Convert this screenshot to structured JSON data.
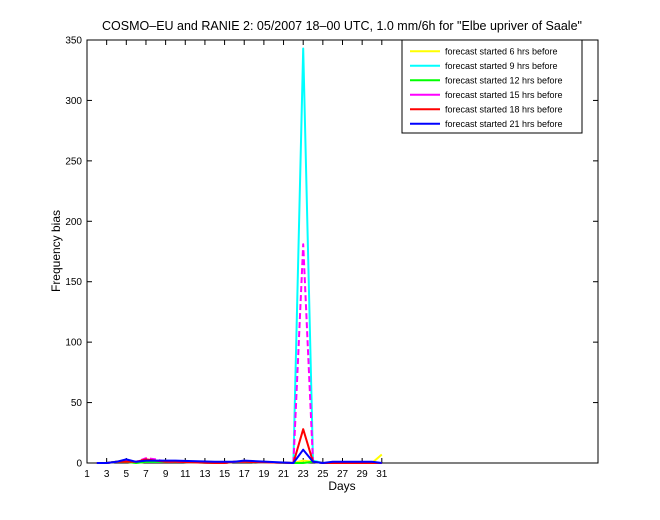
{
  "chart_data": {
    "type": "line",
    "title": "COSMO–EU and RANIE 2: 05/2007 18–00 UTC, 1.0 mm/6h for \"Elbe upriver of Saale\"",
    "xlabel": "Days",
    "ylabel": "Frequency bias",
    "xlim": [
      1,
      53
    ],
    "ylim": [
      0,
      350
    ],
    "xticks": [
      1,
      3,
      5,
      7,
      9,
      11,
      13,
      15,
      17,
      19,
      21,
      23,
      25,
      27,
      29,
      31
    ],
    "yticks": [
      0,
      50,
      100,
      150,
      200,
      250,
      300,
      350
    ],
    "grid": false,
    "legend_position": "top-right",
    "series": [
      {
        "name": "forecast started 6 hrs before",
        "color": "#ffff00",
        "x": [
          2,
          3,
          4,
          5,
          6,
          7,
          8,
          9,
          10,
          14,
          15,
          16,
          17,
          22,
          23,
          24,
          25,
          26,
          27,
          28,
          29,
          30,
          31
        ],
        "y": [
          0,
          0,
          1,
          1,
          0,
          1,
          1,
          1,
          1,
          0,
          0,
          1,
          1,
          0,
          2,
          1,
          0,
          0,
          0,
          0,
          0,
          0,
          7
        ]
      },
      {
        "name": "forecast started 9 hrs before",
        "color": "#00ffff",
        "x": [
          2,
          3,
          4,
          5,
          6,
          7,
          8,
          9,
          10,
          14,
          15,
          16,
          17,
          22,
          23,
          24,
          25,
          26,
          27,
          28,
          29,
          30,
          31
        ],
        "y": [
          0,
          0,
          1,
          2,
          1,
          1,
          1,
          1,
          1,
          0,
          0,
          1,
          1,
          0,
          343,
          2,
          0,
          0,
          0,
          0,
          0,
          0,
          0
        ]
      },
      {
        "name": "forecast started 12 hrs before",
        "color": "#00ff00",
        "x": [
          2,
          3,
          4,
          5,
          6,
          7,
          8,
          9,
          10,
          14,
          15,
          16,
          17,
          22,
          23,
          24,
          25,
          26,
          27,
          28,
          29,
          30,
          31
        ],
        "y": [
          0,
          0,
          1,
          1,
          0,
          1,
          1,
          1,
          1,
          0,
          0,
          1,
          1,
          0,
          0,
          1,
          0,
          0,
          0,
          0,
          0,
          0,
          0
        ]
      },
      {
        "name": "forecast started 15 hrs before",
        "color": "#ff00ff",
        "x": [
          2,
          3,
          4,
          5,
          6,
          7,
          8,
          9,
          10,
          14,
          15,
          16,
          17,
          22,
          23,
          24,
          25,
          26,
          27,
          28,
          29,
          30,
          31
        ],
        "y": [
          0,
          0,
          1,
          2,
          1,
          4,
          3,
          1,
          1,
          0,
          0,
          1,
          1,
          0,
          181,
          1,
          0,
          0,
          0,
          0,
          0,
          0,
          0
        ]
      },
      {
        "name": "forecast started 18 hrs before",
        "color": "#ff0000",
        "x": [
          2,
          3,
          4,
          5,
          6,
          7,
          8,
          9,
          10,
          14,
          15,
          16,
          17,
          22,
          23,
          24,
          25,
          26,
          27,
          28,
          29,
          30,
          31
        ],
        "y": [
          0,
          0,
          1,
          1,
          1,
          3,
          2,
          1,
          1,
          0,
          0,
          1,
          1,
          0,
          28,
          1,
          0,
          0,
          0,
          0,
          0,
          0,
          0
        ]
      },
      {
        "name": "forecast started 21 hrs before",
        "color": "#0000ff",
        "x": [
          2,
          3,
          4,
          5,
          6,
          7,
          8,
          9,
          10,
          14,
          15,
          16,
          17,
          22,
          23,
          24,
          25,
          26,
          27,
          28,
          29,
          30,
          31
        ],
        "y": [
          0,
          0,
          1,
          3,
          1,
          2,
          2,
          2,
          2,
          1,
          1,
          1,
          2,
          0,
          11,
          1,
          0,
          1,
          1,
          1,
          1,
          1,
          0
        ]
      }
    ]
  }
}
